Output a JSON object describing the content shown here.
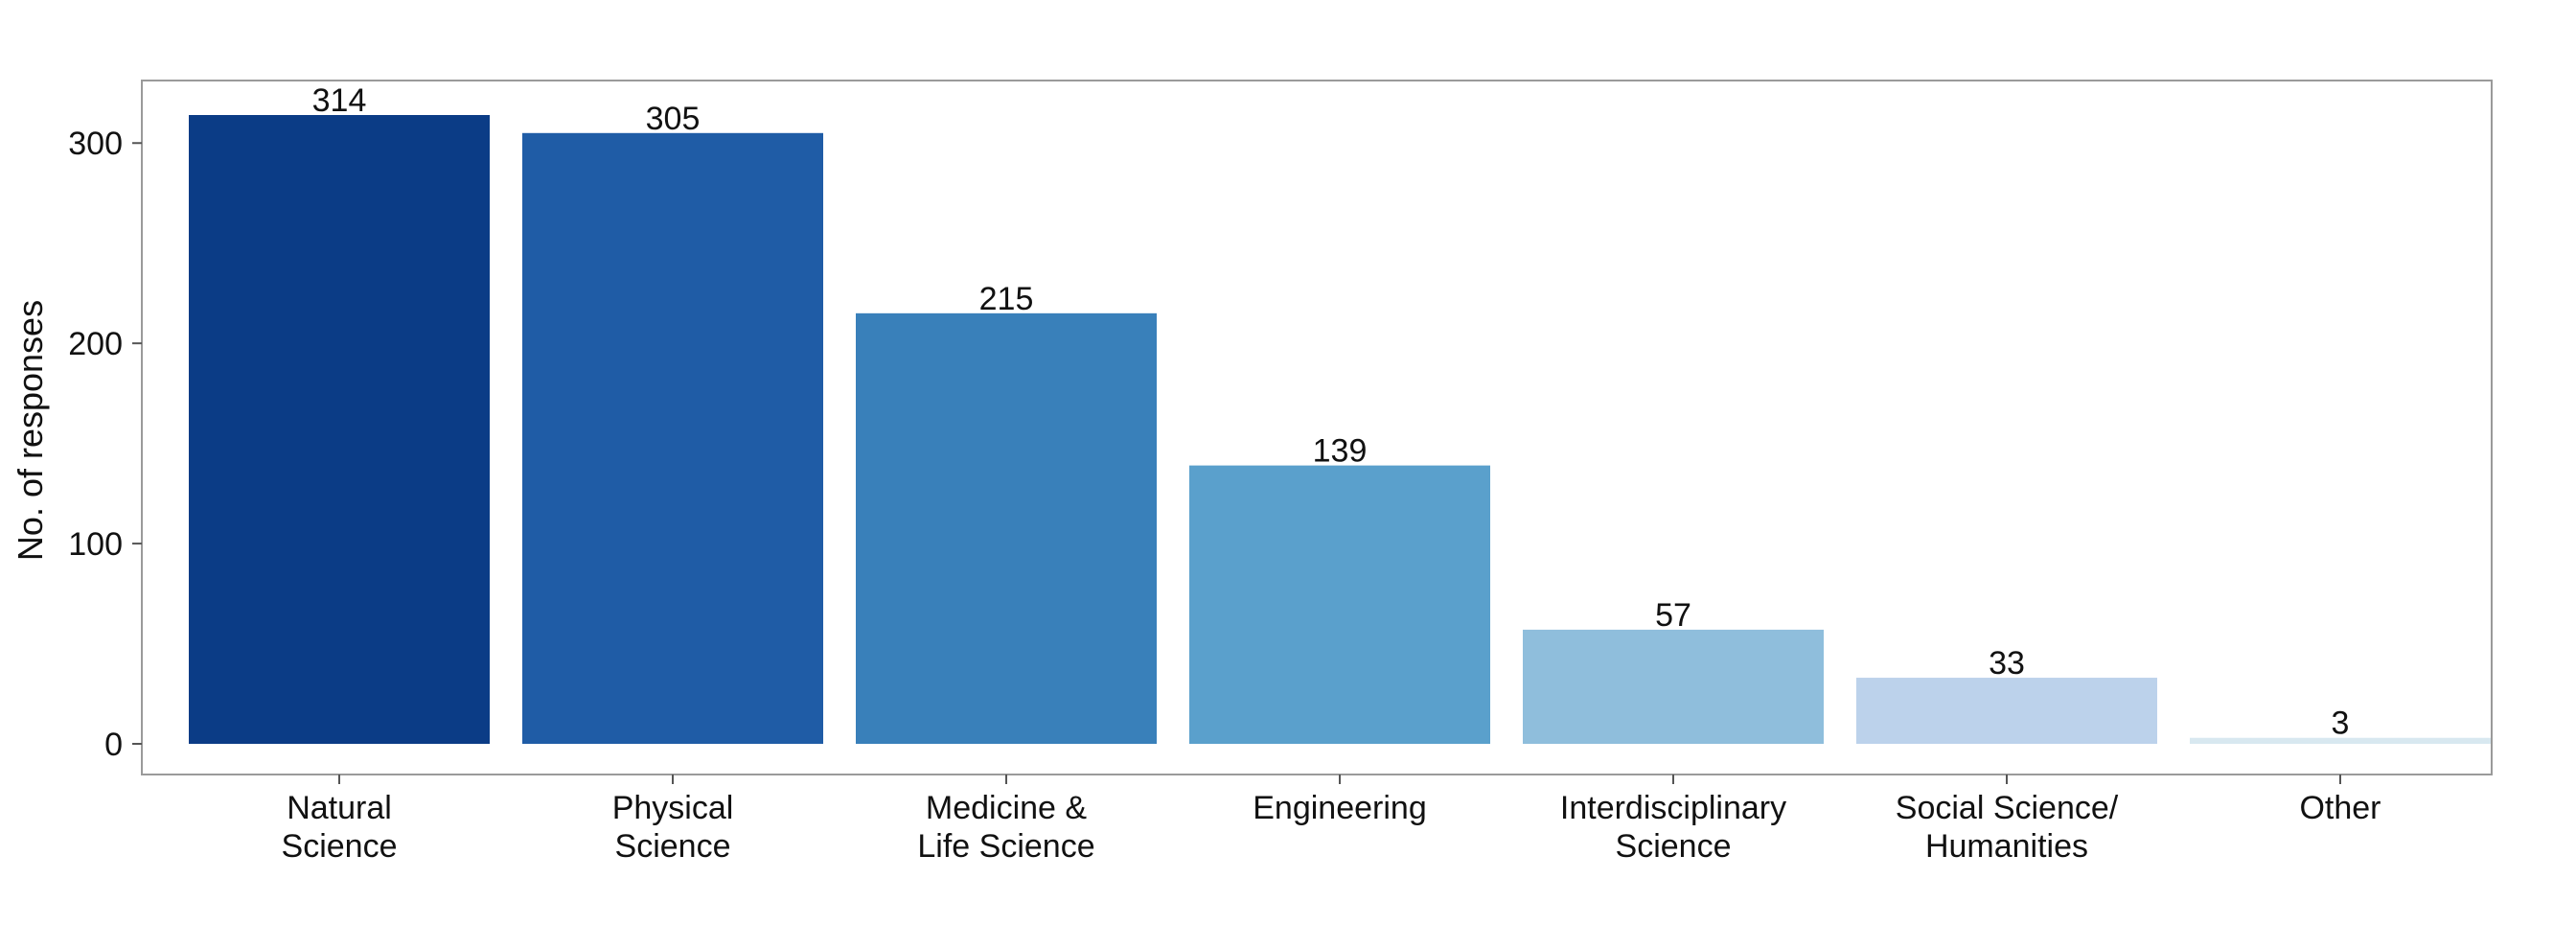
{
  "chart_data": {
    "type": "bar",
    "title": "",
    "xlabel": "",
    "ylabel": "No. of responses",
    "categories": [
      [
        "Natural",
        "Science"
      ],
      [
        "Physical",
        "Science"
      ],
      [
        "Medicine &",
        "Life Science"
      ],
      [
        "Engineering"
      ],
      [
        "Interdisciplinary",
        "Science"
      ],
      [
        "Social Science/",
        "Humanities"
      ],
      [
        "Other"
      ]
    ],
    "values": [
      314,
      305,
      215,
      139,
      57,
      33,
      3
    ],
    "value_labels": [
      "314",
      "305",
      "215",
      "139",
      "57",
      "33",
      "3"
    ],
    "colors": [
      "#0b3c86",
      "#1f5ca6",
      "#3980ba",
      "#5aa0cc",
      "#8fbedc",
      "#bcd2eb",
      "#d8e8f0"
    ],
    "ylim": [
      0,
      314
    ],
    "yticks": [
      0,
      100,
      200,
      300
    ],
    "ytick_labels": [
      "0",
      "100",
      "200",
      "300"
    ],
    "grid": false,
    "legend": "none"
  }
}
